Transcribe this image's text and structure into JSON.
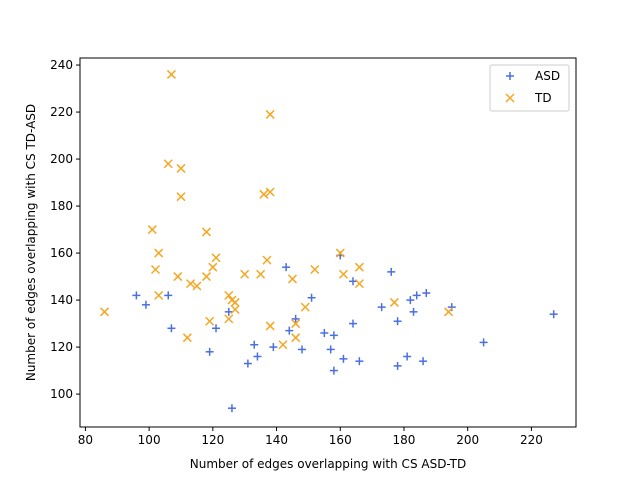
{
  "chart_data": {
    "type": "scatter",
    "title": "",
    "xlabel": "Number of edges overlapping with CS ASD-TD",
    "ylabel": "Number of edges overlapping with CS TD-ASD",
    "xlim": [
      78.3,
      234
    ],
    "ylim": [
      86,
      243
    ],
    "xticks": [
      80,
      100,
      120,
      140,
      160,
      180,
      200,
      220
    ],
    "yticks": [
      100,
      120,
      140,
      160,
      180,
      200,
      220,
      240
    ],
    "grid": false,
    "legend_position": "top-right",
    "series": [
      {
        "name": "ASD",
        "marker": "plus",
        "color": "#4a6fe3",
        "points": [
          [
            96,
            142
          ],
          [
            99,
            138
          ],
          [
            106,
            142
          ],
          [
            107,
            128
          ],
          [
            119,
            118
          ],
          [
            121,
            128
          ],
          [
            125,
            135
          ],
          [
            126,
            94
          ],
          [
            131,
            113
          ],
          [
            133,
            121
          ],
          [
            134,
            116
          ],
          [
            139,
            120
          ],
          [
            143,
            154
          ],
          [
            144,
            127
          ],
          [
            146,
            132
          ],
          [
            148,
            119
          ],
          [
            151,
            141
          ],
          [
            155,
            126
          ],
          [
            157,
            119
          ],
          [
            158,
            110
          ],
          [
            158,
            125
          ],
          [
            160,
            159
          ],
          [
            161,
            115
          ],
          [
            164,
            148
          ],
          [
            164,
            130
          ],
          [
            166,
            114
          ],
          [
            173,
            137
          ],
          [
            176,
            152
          ],
          [
            178,
            112
          ],
          [
            178,
            131
          ],
          [
            181,
            116
          ],
          [
            182,
            140
          ],
          [
            183,
            135
          ],
          [
            184,
            142
          ],
          [
            186,
            114
          ],
          [
            187,
            143
          ],
          [
            195,
            137
          ],
          [
            205,
            122
          ],
          [
            227,
            134
          ]
        ]
      },
      {
        "name": "TD",
        "marker": "x",
        "color": "#f5a623",
        "points": [
          [
            86,
            135
          ],
          [
            101,
            170
          ],
          [
            102,
            153
          ],
          [
            103,
            160
          ],
          [
            103,
            142
          ],
          [
            106,
            198
          ],
          [
            107,
            236
          ],
          [
            109,
            150
          ],
          [
            110,
            196
          ],
          [
            110,
            184
          ],
          [
            112,
            124
          ],
          [
            113,
            147
          ],
          [
            115,
            146
          ],
          [
            118,
            169
          ],
          [
            118,
            150
          ],
          [
            119,
            131
          ],
          [
            120,
            154
          ],
          [
            121,
            158
          ],
          [
            125,
            142
          ],
          [
            125,
            132
          ],
          [
            126,
            140
          ],
          [
            127,
            136
          ],
          [
            127,
            139
          ],
          [
            130,
            151
          ],
          [
            135,
            151
          ],
          [
            136,
            185
          ],
          [
            137,
            157
          ],
          [
            138,
            186
          ],
          [
            138,
            219
          ],
          [
            138,
            129
          ],
          [
            142,
            121
          ],
          [
            145,
            149
          ],
          [
            146,
            130
          ],
          [
            146,
            124
          ],
          [
            149,
            137
          ],
          [
            152,
            153
          ],
          [
            160,
            160
          ],
          [
            161,
            151
          ],
          [
            166,
            154
          ],
          [
            166,
            147
          ],
          [
            177,
            139
          ],
          [
            194,
            135
          ]
        ]
      }
    ]
  }
}
